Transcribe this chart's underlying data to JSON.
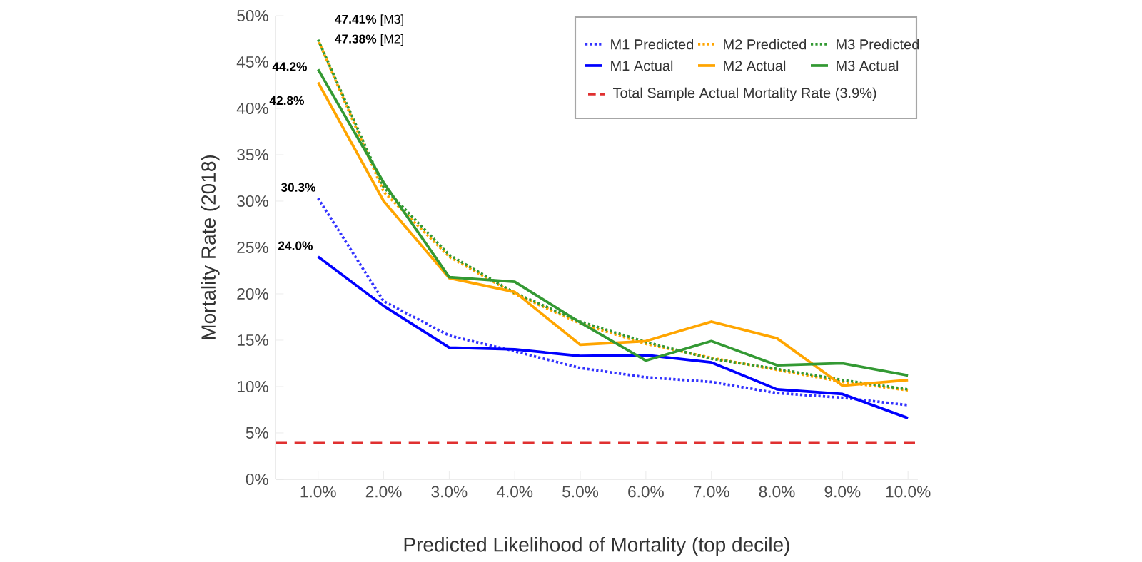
{
  "chart_data": {
    "type": "line",
    "xlabel": "Predicted Likelihood of Mortality (top decile)",
    "ylabel": "Mortality Rate (2018)",
    "categories": [
      "1.0%",
      "2.0%",
      "3.0%",
      "4.0%",
      "5.0%",
      "6.0%",
      "7.0%",
      "8.0%",
      "9.0%",
      "10.0%"
    ],
    "ylim": [
      0,
      50
    ],
    "yticks": [
      {
        "value": 0,
        "label": "0%"
      },
      {
        "value": 5,
        "label": "5%"
      },
      {
        "value": 10,
        "label": "10%"
      },
      {
        "value": 15,
        "label": "15%"
      },
      {
        "value": 20,
        "label": "20%"
      },
      {
        "value": 25,
        "label": "25%"
      },
      {
        "value": 30,
        "label": "30%"
      },
      {
        "value": 35,
        "label": "35%"
      },
      {
        "value": 40,
        "label": "40%"
      },
      {
        "value": 45,
        "label": "45%"
      },
      {
        "value": 50,
        "label": "50%"
      }
    ],
    "legend": "top right",
    "series": [
      {
        "name": "M1 Predicted",
        "color": "#3333ff",
        "line_style": "dotted",
        "values": [
          30.3,
          19.2,
          15.5,
          13.8,
          12.0,
          11.0,
          10.5,
          9.3,
          8.8,
          8.0
        ],
        "value_labels": [
          "30.3%",
          null,
          null,
          null,
          null,
          null,
          null,
          null,
          null,
          null
        ]
      },
      {
        "name": "M2 Predicted",
        "color": "#ffa500",
        "line_style": "dotted",
        "values": [
          47.38,
          31.0,
          24.0,
          20.0,
          16.8,
          14.6,
          13.1,
          11.8,
          10.5,
          9.6
        ],
        "value_labels": [
          "**47.38%** [M2]",
          null,
          null,
          null,
          null,
          null,
          null,
          null,
          null,
          null
        ]
      },
      {
        "name": "M3 Predicted",
        "color": "#339933",
        "line_style": "dotted",
        "values": [
          47.41,
          31.5,
          24.2,
          20.1,
          17.0,
          14.8,
          13.0,
          11.9,
          10.7,
          9.7
        ],
        "value_labels": [
          "**47.41%** [M3]",
          null,
          null,
          null,
          null,
          null,
          null,
          null,
          null,
          null
        ]
      },
      {
        "name": "M1 Actual",
        "color": "#0000ff",
        "line_style": "solid",
        "values": [
          24.0,
          18.7,
          14.2,
          14.0,
          13.3,
          13.4,
          12.6,
          9.7,
          9.2,
          6.6
        ],
        "value_labels": [
          "24.0%",
          null,
          null,
          null,
          null,
          null,
          null,
          null,
          null,
          null
        ]
      },
      {
        "name": "M2 Actual",
        "color": "#ffa500",
        "line_style": "solid",
        "values": [
          42.8,
          30.0,
          21.7,
          20.2,
          14.5,
          14.9,
          17.0,
          15.2,
          10.1,
          10.7
        ],
        "value_labels": [
          "42.8%",
          null,
          null,
          null,
          null,
          null,
          null,
          null,
          null,
          null
        ]
      },
      {
        "name": "M3 Actual",
        "color": "#339933",
        "line_style": "solid",
        "values": [
          44.2,
          32.0,
          21.8,
          21.3,
          16.9,
          12.8,
          14.9,
          12.3,
          12.5,
          11.2
        ],
        "value_labels": [
          "44.2%",
          null,
          null,
          null,
          null,
          null,
          null,
          null,
          null,
          null
        ]
      }
    ],
    "ref_lines": [
      {
        "axis": "y",
        "value": 3.9,
        "label": "Total Sample Actual Mortality Rate (3.9%)",
        "color": "#e03030",
        "line_style": "dashed"
      }
    ]
  }
}
